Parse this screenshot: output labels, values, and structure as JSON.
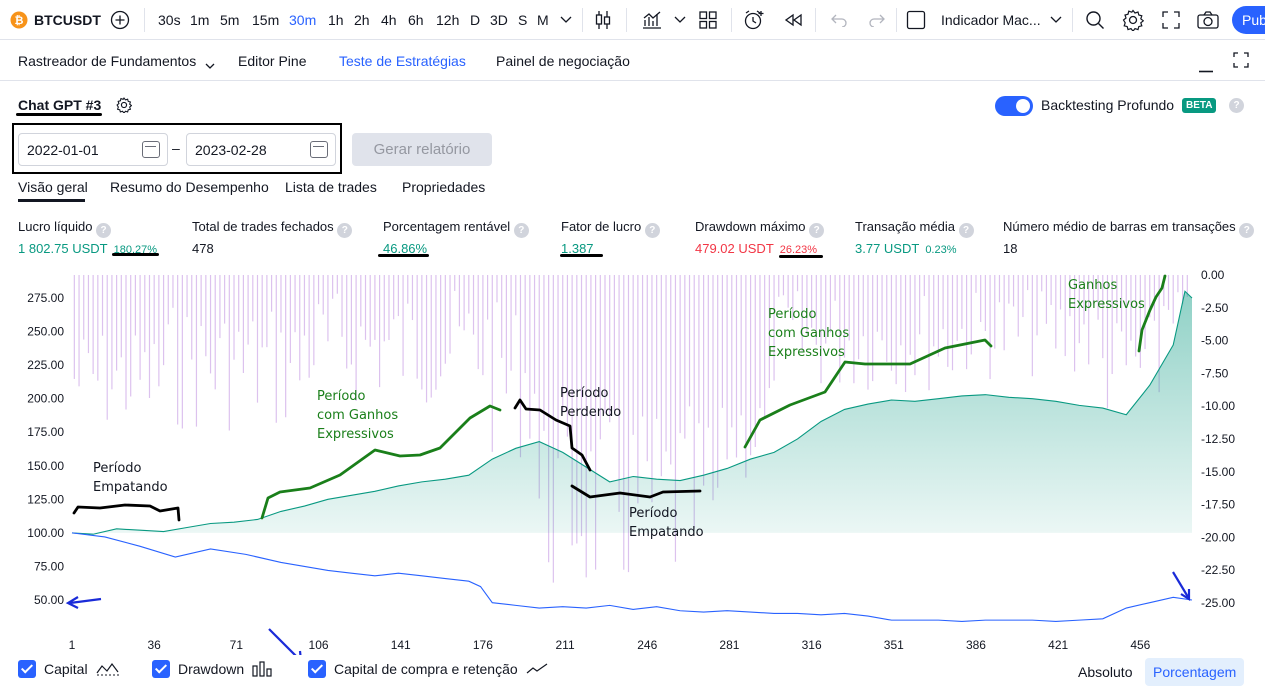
{
  "topbar": {
    "symbol": "BTCUSDT",
    "timeframes": [
      "30s",
      "1m",
      "5m",
      "15m",
      "30m",
      "1h",
      "2h",
      "4h",
      "6h",
      "12h",
      "D",
      "3D",
      "S",
      "M"
    ],
    "active_timeframe": "30m",
    "indicator_label": "Indicador Mac...",
    "publish_label": "Pub"
  },
  "panel_tabs": [
    "Rastreador de Fundamentos",
    "Editor Pine",
    "Teste de Estratégias",
    "Painel de negociação"
  ],
  "strategy": {
    "name": "Chat GPT #3",
    "deep_backtest_label": "Backtesting Profundo",
    "beta_label": "BETA",
    "start_date": "2022-01-01",
    "date_sep": "–",
    "end_date": "2023-02-28",
    "generate_label": "Gerar relatório"
  },
  "sub_tabs": [
    "Visão geral",
    "Resumo do Desempenho",
    "Lista de trades",
    "Propriedades"
  ],
  "metrics": [
    {
      "label": "Lucro líquido",
      "value": "1 802.75 USDT",
      "pct": "180.27%"
    },
    {
      "label": "Total de trades fechados",
      "value": "478"
    },
    {
      "label": "Porcentagem rentável",
      "value": "46.86%"
    },
    {
      "label": "Fator de lucro",
      "value": "1.387"
    },
    {
      "label": "Drawdown máximo",
      "value": "479.02 USDT",
      "pct": "26.23%"
    },
    {
      "label": "Transação média",
      "value": "3.77 USDT",
      "pct": "0.23%"
    },
    {
      "label": "Número médio de barras em transações",
      "value": "18"
    }
  ],
  "chart_data": {
    "type": "area",
    "x_ticks": [
      "1",
      "36",
      "71",
      "106",
      "141",
      "176",
      "211",
      "246",
      "281",
      "316",
      "351",
      "386",
      "421",
      "456"
    ],
    "y_left_ticks": [
      "275.00",
      "250.00",
      "225.00",
      "200.00",
      "175.00",
      "150.00",
      "125.00",
      "100.00",
      "75.00",
      "50.00"
    ],
    "y_right_ticks": [
      "0.00",
      "-2.50",
      "-5.00",
      "-7.50",
      "-10.00",
      "-12.50",
      "-15.00",
      "-17.50",
      "-20.00",
      "-22.50",
      "-25.00"
    ],
    "ylim_left": [
      30,
      290
    ],
    "ylim_right": [
      -27,
      1
    ],
    "xlim": [
      1,
      478
    ],
    "series": [
      {
        "name": "Capital",
        "color": "#089981",
        "points": [
          [
            1,
            100
          ],
          [
            10,
            99
          ],
          [
            20,
            103
          ],
          [
            30,
            102
          ],
          [
            40,
            101
          ],
          [
            50,
            104
          ],
          [
            60,
            107
          ],
          [
            70,
            108
          ],
          [
            80,
            110
          ],
          [
            90,
            116
          ],
          [
            100,
            120
          ],
          [
            110,
            125
          ],
          [
            120,
            128
          ],
          [
            130,
            131
          ],
          [
            140,
            135
          ],
          [
            150,
            138
          ],
          [
            160,
            140
          ],
          [
            170,
            143
          ],
          [
            180,
            155
          ],
          [
            190,
            163
          ],
          [
            200,
            168
          ],
          [
            210,
            160
          ],
          [
            220,
            149
          ],
          [
            230,
            138
          ],
          [
            240,
            142
          ],
          [
            250,
            140
          ],
          [
            260,
            139
          ],
          [
            270,
            143
          ],
          [
            280,
            148
          ],
          [
            290,
            155
          ],
          [
            300,
            160
          ],
          [
            310,
            170
          ],
          [
            320,
            183
          ],
          [
            330,
            192
          ],
          [
            340,
            196
          ],
          [
            350,
            199
          ],
          [
            360,
            198
          ],
          [
            370,
            200
          ],
          [
            380,
            202
          ],
          [
            390,
            203
          ],
          [
            400,
            201
          ],
          [
            410,
            200
          ],
          [
            420,
            198
          ],
          [
            430,
            195
          ],
          [
            440,
            193
          ],
          [
            450,
            188
          ],
          [
            460,
            210
          ],
          [
            470,
            240
          ],
          [
            475,
            280
          ],
          [
            478,
            275
          ]
        ]
      },
      {
        "name": "Capital de compra e retenção",
        "color": "#2962ff",
        "points": [
          [
            1,
            100
          ],
          [
            15,
            97
          ],
          [
            30,
            90
          ],
          [
            45,
            82
          ],
          [
            60,
            88
          ],
          [
            75,
            84
          ],
          [
            90,
            78
          ],
          [
            100,
            75
          ],
          [
            110,
            72
          ],
          [
            120,
            70
          ],
          [
            130,
            68
          ],
          [
            140,
            70
          ],
          [
            150,
            68
          ],
          [
            160,
            66
          ],
          [
            170,
            64
          ],
          [
            175,
            60
          ],
          [
            180,
            48
          ],
          [
            190,
            46
          ],
          [
            200,
            44
          ],
          [
            210,
            45
          ],
          [
            220,
            44
          ],
          [
            230,
            46
          ],
          [
            240,
            43
          ],
          [
            250,
            45
          ],
          [
            260,
            42
          ],
          [
            270,
            41
          ],
          [
            280,
            42
          ],
          [
            290,
            41
          ],
          [
            300,
            40
          ],
          [
            310,
            40
          ],
          [
            320,
            39
          ],
          [
            330,
            40
          ],
          [
            340,
            38
          ],
          [
            350,
            35
          ],
          [
            360,
            35
          ],
          [
            370,
            35
          ],
          [
            380,
            34
          ],
          [
            390,
            35
          ],
          [
            400,
            35
          ],
          [
            410,
            35
          ],
          [
            420,
            34
          ],
          [
            430,
            35
          ],
          [
            440,
            36
          ],
          [
            450,
            44
          ],
          [
            460,
            48
          ],
          [
            470,
            52
          ],
          [
            478,
            50
          ]
        ]
      }
    ],
    "drawdown_color": "#d7b8ec",
    "annotations": [
      "Período\nEmpatando",
      "Período\ncom Ganhos\nExpressivos",
      "Período\nPerdendo",
      "Período\nEmpatando",
      "Período\ncom Ganhos\nExpressivos",
      "Ganhos\nExpressivos"
    ]
  },
  "legend": {
    "capital_label": "Capital",
    "drawdown_label": "Drawdown",
    "bh_label": "Capital de compra e retenção",
    "absolute_label": "Absoluto",
    "percent_label": "Porcentagem"
  }
}
